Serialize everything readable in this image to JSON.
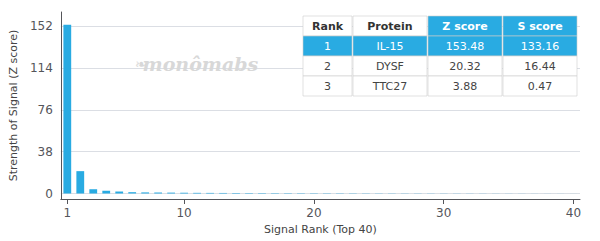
{
  "chart_data": {
    "type": "bar",
    "xlabel": "Signal Rank (Top 40)",
    "ylabel": "Strength of Signal (Z score)",
    "x": [
      1,
      2,
      3,
      4,
      5,
      6,
      7,
      8,
      9,
      10,
      11,
      12,
      13,
      14,
      15,
      16,
      17,
      18,
      19,
      20,
      21,
      22,
      23,
      24,
      25,
      26,
      27,
      28,
      29,
      30,
      31,
      32,
      33,
      34,
      35,
      36,
      37,
      38,
      39,
      40
    ],
    "values": [
      153.48,
      20.32,
      3.88,
      2.5,
      1.8,
      1.2,
      1.0,
      0.9,
      0.8,
      0.7,
      0.6,
      0.55,
      0.5,
      0.45,
      0.4,
      0.38,
      0.35,
      0.32,
      0.3,
      0.28,
      0.26,
      0.24,
      0.22,
      0.2,
      0.18,
      0.17,
      0.16,
      0.15,
      0.14,
      0.13,
      0.12,
      0.11,
      0.1,
      0.09,
      0.08,
      0.07,
      0.06,
      0.05,
      0.04,
      0.03
    ],
    "color": "#29ABE2",
    "xlim": [
      0.5,
      40.5
    ],
    "xticks": [
      1,
      10,
      20,
      30,
      40
    ],
    "ylim": [
      -5,
      165
    ],
    "yticks": [
      0,
      38,
      76,
      114,
      152
    ],
    "grid": true,
    "annotations": [
      "❧",
      "monômabs"
    ],
    "table": {
      "columns": [
        "Rank",
        "Protein",
        "Z score",
        "S score"
      ],
      "rows": [
        [
          "1",
          "IL-15",
          "153.48",
          "133.16"
        ],
        [
          "2",
          "DYSF",
          "20.32",
          "16.44"
        ],
        [
          "3",
          "TTC27",
          "3.88",
          "0.47"
        ]
      ]
    }
  }
}
